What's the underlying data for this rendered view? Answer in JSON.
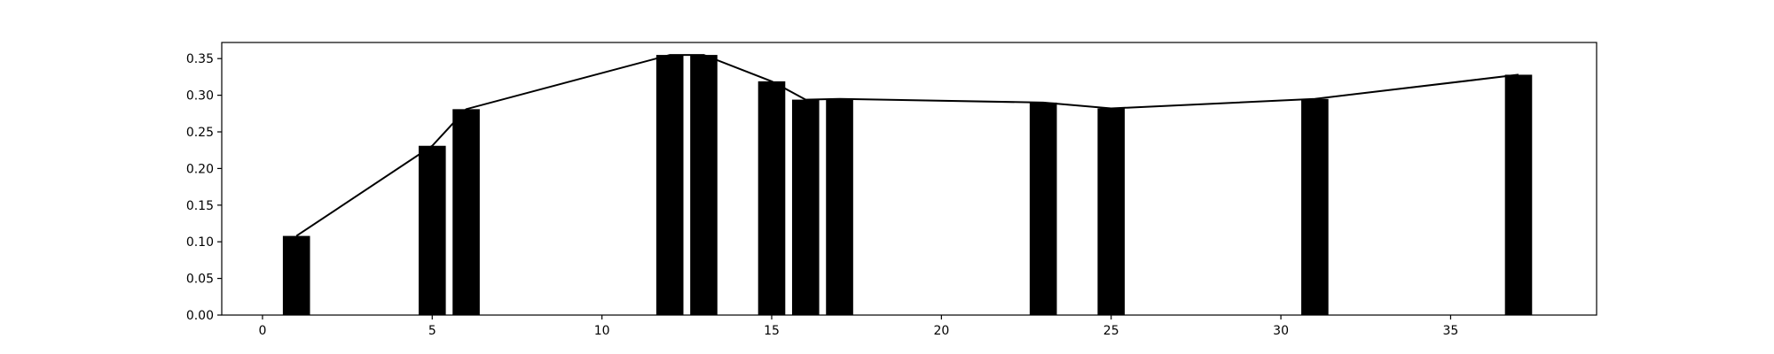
{
  "chart_data": {
    "type": "bar",
    "title": "",
    "xlabel": "",
    "ylabel": "",
    "xlim": [
      -1.2,
      39.3
    ],
    "ylim": [
      0,
      0.372
    ],
    "grid": false,
    "legend": "none",
    "x_ticks": [
      {
        "value": 0,
        "label": "0"
      },
      {
        "value": 5,
        "label": "5"
      },
      {
        "value": 10,
        "label": "10"
      },
      {
        "value": 15,
        "label": "15"
      },
      {
        "value": 20,
        "label": "20"
      },
      {
        "value": 25,
        "label": "25"
      },
      {
        "value": 30,
        "label": "30"
      },
      {
        "value": 35,
        "label": "35"
      }
    ],
    "y_ticks": [
      {
        "value": 0.0,
        "label": "0.00"
      },
      {
        "value": 0.05,
        "label": "0.05"
      },
      {
        "value": 0.1,
        "label": "0.10"
      },
      {
        "value": 0.15,
        "label": "0.15"
      },
      {
        "value": 0.2,
        "label": "0.20"
      },
      {
        "value": 0.25,
        "label": "0.25"
      },
      {
        "value": 0.3,
        "label": "0.30"
      },
      {
        "value": 0.35,
        "label": "0.35"
      }
    ],
    "bar_width": 0.8,
    "bar_color": "#000000",
    "line_color": "#000000",
    "series": [
      {
        "x": [
          1,
          5,
          6,
          12,
          13,
          15,
          16,
          17,
          23,
          25,
          31,
          37
        ],
        "values": [
          0.108,
          0.231,
          0.281,
          0.355,
          0.355,
          0.319,
          0.294,
          0.295,
          0.29,
          0.282,
          0.295,
          0.328
        ]
      }
    ]
  }
}
